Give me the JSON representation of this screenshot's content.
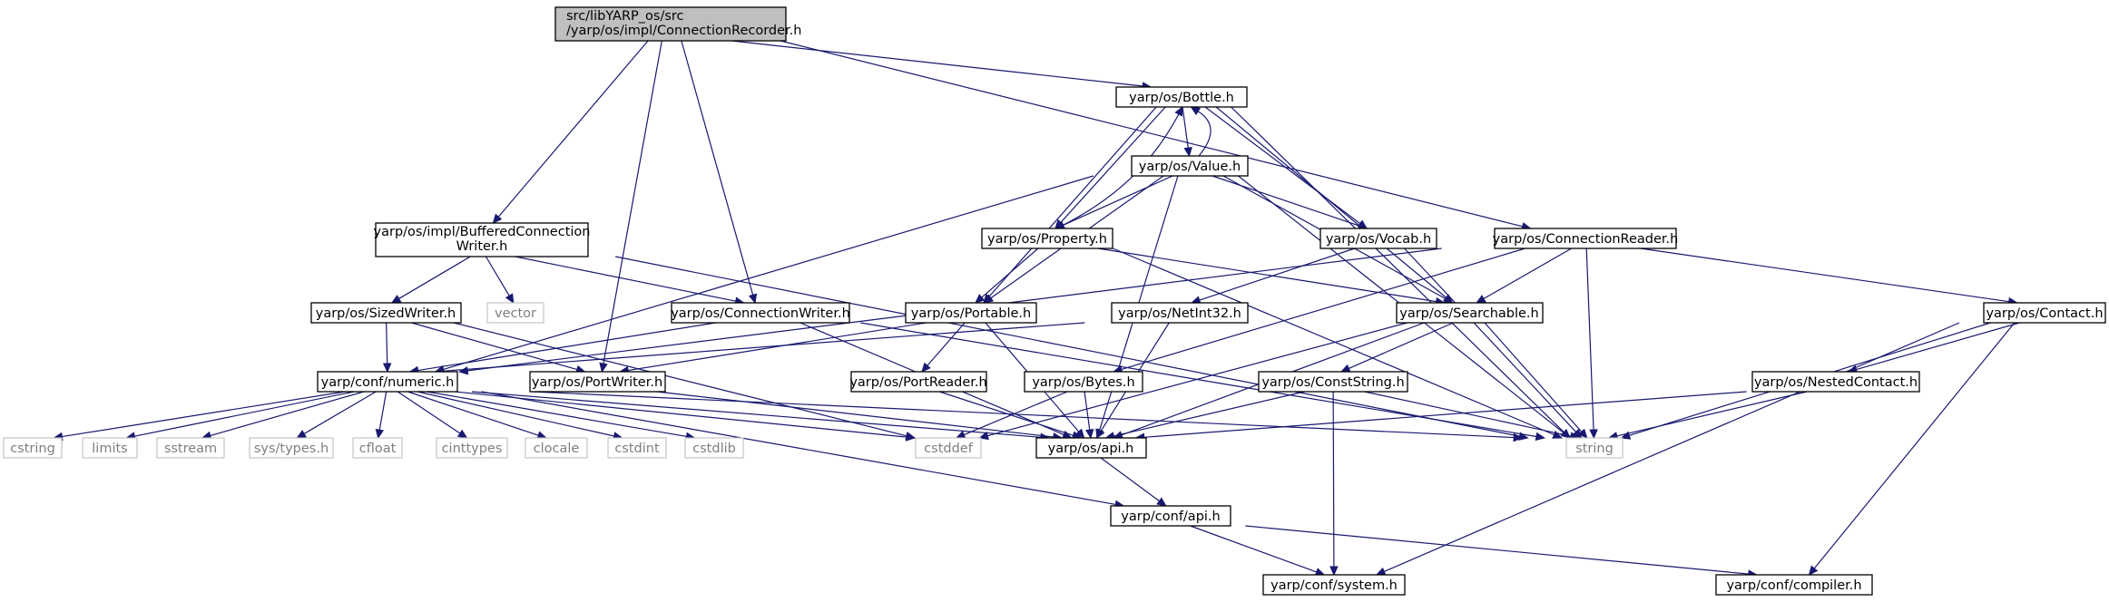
{
  "graph": {
    "nodes": {
      "root": [
        "src/libYARP_os/src",
        "/yarp/os/impl/ConnectionRecorder.h"
      ],
      "bottle": [
        "yarp/os/Bottle.h"
      ],
      "value": [
        "yarp/os/Value.h"
      ],
      "buffered": [
        "yarp/os/impl/BufferedConnection",
        "Writer.h"
      ],
      "property": [
        "yarp/os/Property.h"
      ],
      "vocab": [
        "yarp/os/Vocab.h"
      ],
      "connreader": [
        "yarp/os/ConnectionReader.h"
      ],
      "sizedwriter": [
        "yarp/os/SizedWriter.h"
      ],
      "vector": [
        "vector"
      ],
      "connwriter": [
        "yarp/os/ConnectionWriter.h"
      ],
      "portable": [
        "yarp/os/Portable.h"
      ],
      "netint32": [
        "yarp/os/NetInt32.h"
      ],
      "searchable": [
        "yarp/os/Searchable.h"
      ],
      "contact": [
        "yarp/os/Contact.h"
      ],
      "numeric": [
        "yarp/conf/numeric.h"
      ],
      "portwriter": [
        "yarp/os/PortWriter.h"
      ],
      "portreader": [
        "yarp/os/PortReader.h"
      ],
      "bytes": [
        "yarp/os/Bytes.h"
      ],
      "conststring": [
        "yarp/os/ConstString.h"
      ],
      "nestedcontact": [
        "yarp/os/NestedContact.h"
      ],
      "cstring": [
        "cstring"
      ],
      "limits": [
        "limits"
      ],
      "sstream": [
        "sstream"
      ],
      "systypes": [
        "sys/types.h"
      ],
      "cfloat": [
        "cfloat"
      ],
      "cinttypes": [
        "cinttypes"
      ],
      "clocale": [
        "clocale"
      ],
      "cstdint": [
        "cstdint"
      ],
      "cstdlib": [
        "cstdlib"
      ],
      "cstddef": [
        "cstddef"
      ],
      "osapi": [
        "yarp/os/api.h"
      ],
      "string": [
        "string"
      ],
      "confapi": [
        "yarp/conf/api.h"
      ],
      "system": [
        "yarp/conf/system.h"
      ],
      "compiler": [
        "yarp/conf/compiler.h"
      ]
    },
    "edges": [
      [
        "root",
        "bottle"
      ],
      [
        "root",
        "buffered"
      ],
      [
        "root",
        "connwriter"
      ],
      [
        "root",
        "portwriter"
      ],
      [
        "root",
        "connreader"
      ],
      [
        "bottle",
        "value"
      ],
      [
        "bottle",
        "property"
      ],
      [
        "bottle",
        "vocab"
      ],
      [
        "bottle",
        "portable"
      ],
      [
        "bottle",
        "searchable"
      ],
      [
        "bottle",
        "string"
      ],
      [
        "value",
        "bottle"
      ],
      [
        "value",
        "property"
      ],
      [
        "value",
        "vocab"
      ],
      [
        "value",
        "portable"
      ],
      [
        "value",
        "searchable"
      ],
      [
        "value",
        "numeric"
      ],
      [
        "value",
        "osapi"
      ],
      [
        "value",
        "string"
      ],
      [
        "property",
        "bottle"
      ],
      [
        "property",
        "portable"
      ],
      [
        "property",
        "searchable"
      ],
      [
        "property",
        "string"
      ],
      [
        "vocab",
        "netint32"
      ],
      [
        "vocab",
        "string"
      ],
      [
        "buffered",
        "sizedwriter"
      ],
      [
        "buffered",
        "vector"
      ],
      [
        "buffered",
        "connwriter"
      ],
      [
        "buffered",
        "string"
      ],
      [
        "connreader",
        "searchable"
      ],
      [
        "connreader",
        "bytes"
      ],
      [
        "connreader",
        "contact"
      ],
      [
        "connreader",
        "numeric"
      ],
      [
        "connreader",
        "string"
      ],
      [
        "sizedwriter",
        "numeric"
      ],
      [
        "sizedwriter",
        "portwriter"
      ],
      [
        "sizedwriter",
        "cstddef"
      ],
      [
        "connwriter",
        "numeric"
      ],
      [
        "connwriter",
        "osapi"
      ],
      [
        "connwriter",
        "string"
      ],
      [
        "portable",
        "portwriter"
      ],
      [
        "portable",
        "portreader"
      ],
      [
        "portable",
        "osapi"
      ],
      [
        "netint32",
        "numeric"
      ],
      [
        "netint32",
        "osapi"
      ],
      [
        "searchable",
        "conststring"
      ],
      [
        "searchable",
        "osapi"
      ],
      [
        "searchable",
        "string"
      ],
      [
        "searchable",
        "cstddef"
      ],
      [
        "contact",
        "nestedcontact"
      ],
      [
        "contact",
        "string"
      ],
      [
        "contact",
        "system"
      ],
      [
        "contact",
        "compiler"
      ],
      [
        "numeric",
        "cstring"
      ],
      [
        "numeric",
        "limits"
      ],
      [
        "numeric",
        "sstream"
      ],
      [
        "numeric",
        "systypes"
      ],
      [
        "numeric",
        "cfloat"
      ],
      [
        "numeric",
        "cinttypes"
      ],
      [
        "numeric",
        "clocale"
      ],
      [
        "numeric",
        "cstdint"
      ],
      [
        "numeric",
        "cstdlib"
      ],
      [
        "numeric",
        "cstddef"
      ],
      [
        "numeric",
        "osapi"
      ],
      [
        "numeric",
        "confapi"
      ],
      [
        "numeric",
        "string"
      ],
      [
        "portwriter",
        "osapi"
      ],
      [
        "portreader",
        "osapi"
      ],
      [
        "bytes",
        "osapi"
      ],
      [
        "bytes",
        "cstddef"
      ],
      [
        "conststring",
        "osapi"
      ],
      [
        "conststring",
        "system"
      ],
      [
        "conststring",
        "string"
      ],
      [
        "nestedcontact",
        "osapi"
      ],
      [
        "nestedcontact",
        "string"
      ],
      [
        "osapi",
        "confapi"
      ],
      [
        "confapi",
        "system"
      ],
      [
        "confapi",
        "compiler"
      ]
    ]
  }
}
